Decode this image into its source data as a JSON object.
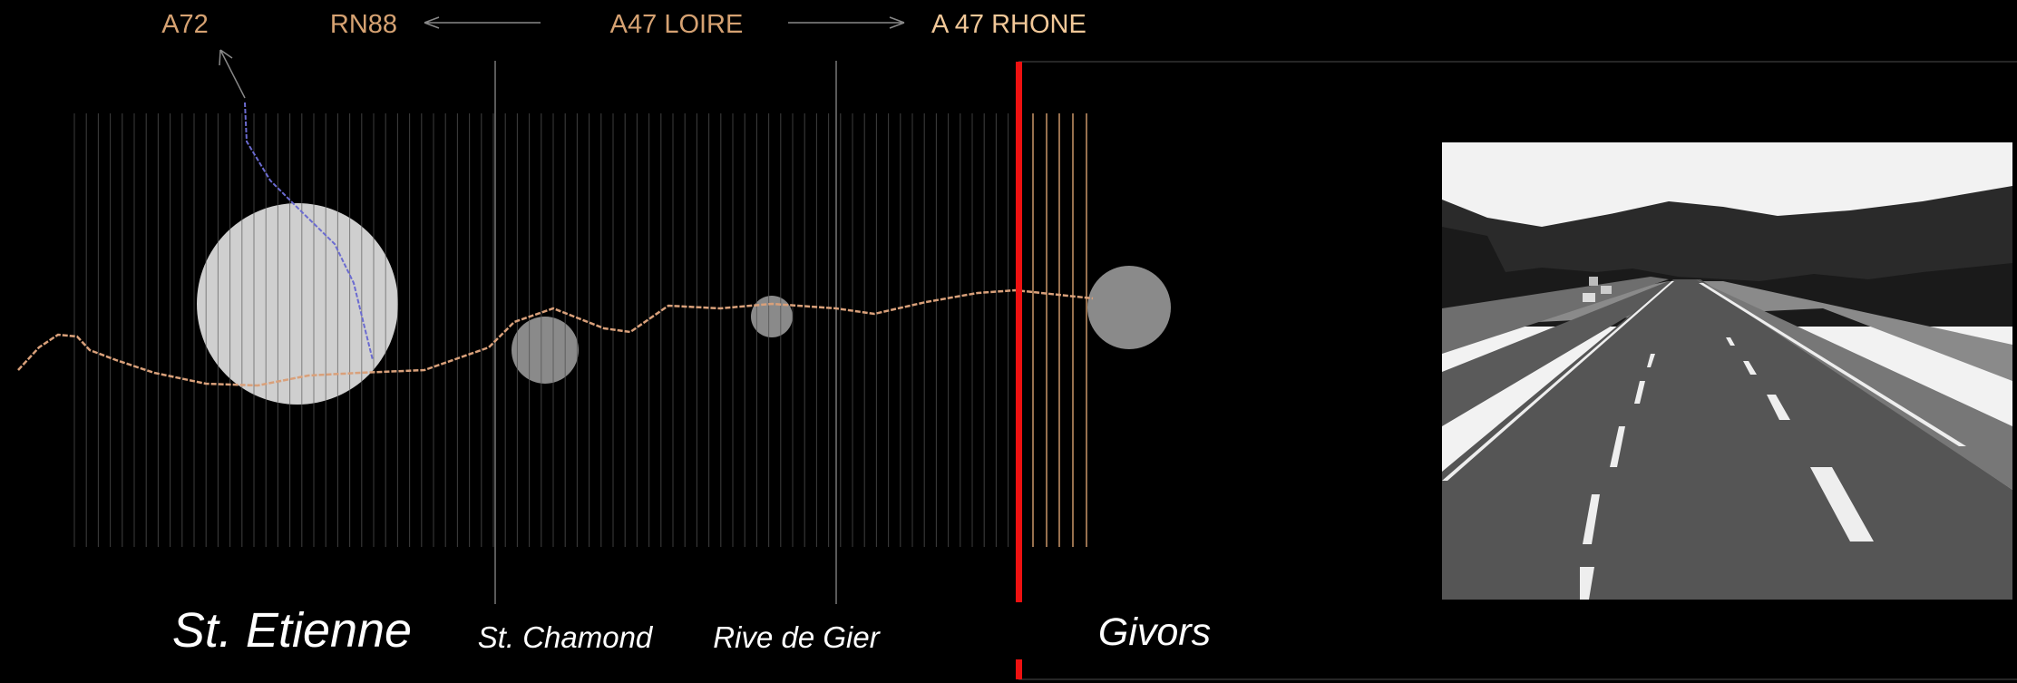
{
  "roads": {
    "a72": "A72",
    "rn88": "RN88",
    "a47_loire": "A47 LOIRE",
    "a47_rhone": "A 47 RHONE"
  },
  "towns": [
    "St. Etienne",
    "St. Chamond",
    "Rive de Gier",
    "Givors"
  ]
}
